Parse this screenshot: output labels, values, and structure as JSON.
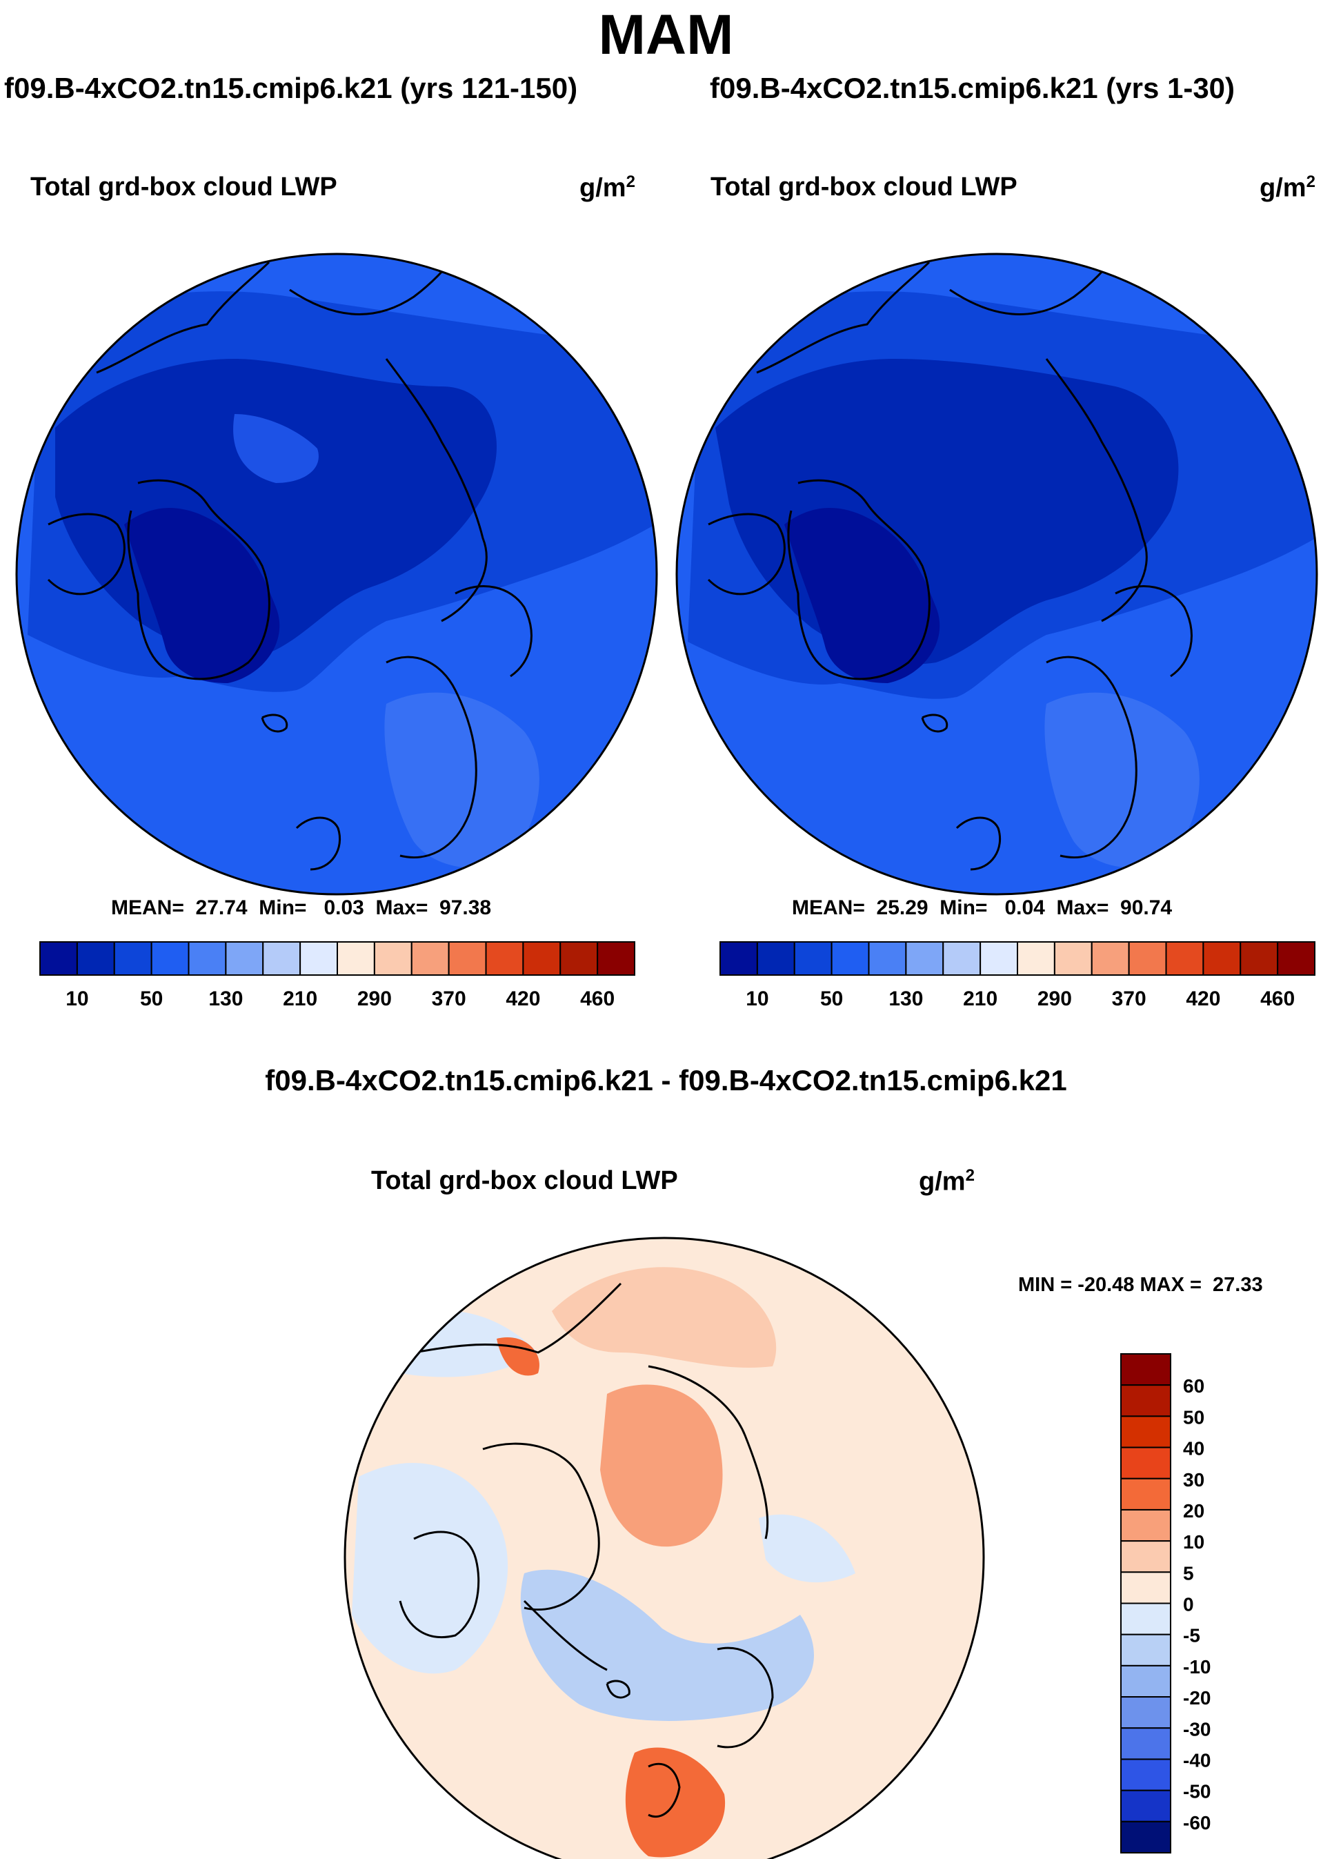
{
  "figure": {
    "season_title": "MAM",
    "panels": [
      {
        "run_title": "f09.B-4xCO2.tn15.cmip6.k21 (yrs 121-150)",
        "variable": "Total grd-box cloud LWP",
        "units_base": "g/m",
        "units_exp": "2",
        "stats_line": "MEAN=  27.74  Min=   0.03  Max=  97.38"
      },
      {
        "run_title": "f09.B-4xCO2.tn15.cmip6.k21 (yrs 1-30)",
        "variable": "Total grd-box cloud LWP",
        "units_base": "g/m",
        "units_exp": "2",
        "stats_line": "MEAN=  25.29  Min=   0.04  Max=  90.74"
      }
    ],
    "difference": {
      "title": "f09.B-4xCO2.tn15.cmip6.k21 - f09.B-4xCO2.tn15.cmip6.k21",
      "variable": "Total grd-box cloud LWP",
      "units_base": "g/m",
      "units_exp": "2",
      "minmax_line": "MIN = -20.48 MAX =  27.33"
    }
  },
  "chart_data": [
    {
      "type": "heatmap",
      "title": "f09.B-4xCO2.tn15.cmip6.k21 (yrs 121-150)",
      "subtitle": "Total grd-box cloud LWP",
      "units": "g/m2",
      "projection": "north polar stereographic",
      "mean": 27.74,
      "min": 0.03,
      "max": 97.38,
      "colorbar": {
        "orientation": "horizontal",
        "tick_labels": [
          "10",
          "50",
          "130",
          "210",
          "290",
          "370",
          "420",
          "460"
        ],
        "colors": [
          "#000f99",
          "#0026b3",
          "#0d45d9",
          "#1f5ef2",
          "#4a80f5",
          "#7ea6f7",
          "#b4cbf9",
          "#dfeaff",
          "#fdebdc",
          "#fbcbb0",
          "#f7a07c",
          "#f2784d",
          "#e44a1f",
          "#cc2d08",
          "#ab1b02",
          "#8a0000"
        ]
      }
    },
    {
      "type": "heatmap",
      "title": "f09.B-4xCO2.tn15.cmip6.k21 (yrs 1-30)",
      "subtitle": "Total grd-box cloud LWP",
      "units": "g/m2",
      "projection": "north polar stereographic",
      "mean": 25.29,
      "min": 0.04,
      "max": 90.74,
      "colorbar": {
        "orientation": "horizontal",
        "tick_labels": [
          "10",
          "50",
          "130",
          "210",
          "290",
          "370",
          "420",
          "460"
        ],
        "colors": [
          "#000f99",
          "#0026b3",
          "#0d45d9",
          "#1f5ef2",
          "#4a80f5",
          "#7ea6f7",
          "#b4cbf9",
          "#dfeaff",
          "#fdebdc",
          "#fbcbb0",
          "#f7a07c",
          "#f2784d",
          "#e44a1f",
          "#cc2d08",
          "#ab1b02",
          "#8a0000"
        ]
      }
    },
    {
      "type": "heatmap",
      "title": "f09.B-4xCO2.tn15.cmip6.k21 - f09.B-4xCO2.tn15.cmip6.k21",
      "subtitle": "Total grd-box cloud LWP",
      "units": "g/m2",
      "projection": "north polar stereographic",
      "min": -20.48,
      "max": 27.33,
      "colorbar": {
        "orientation": "vertical",
        "tick_labels": [
          "60",
          "50",
          "40",
          "30",
          "20",
          "10",
          "5",
          "0",
          "-5",
          "-10",
          "-20",
          "-30",
          "-40",
          "-50",
          "-60"
        ],
        "colors": [
          "#8a0000",
          "#b01800",
          "#d43000",
          "#e8441a",
          "#f36a38",
          "#f8a07a",
          "#fbcbb0",
          "#fde9d9",
          "#dbe9fb",
          "#b8d0f5",
          "#93b4f1",
          "#6d92ec",
          "#4c74ea",
          "#2e55e6",
          "#1534c8",
          "#001077"
        ]
      }
    }
  ]
}
